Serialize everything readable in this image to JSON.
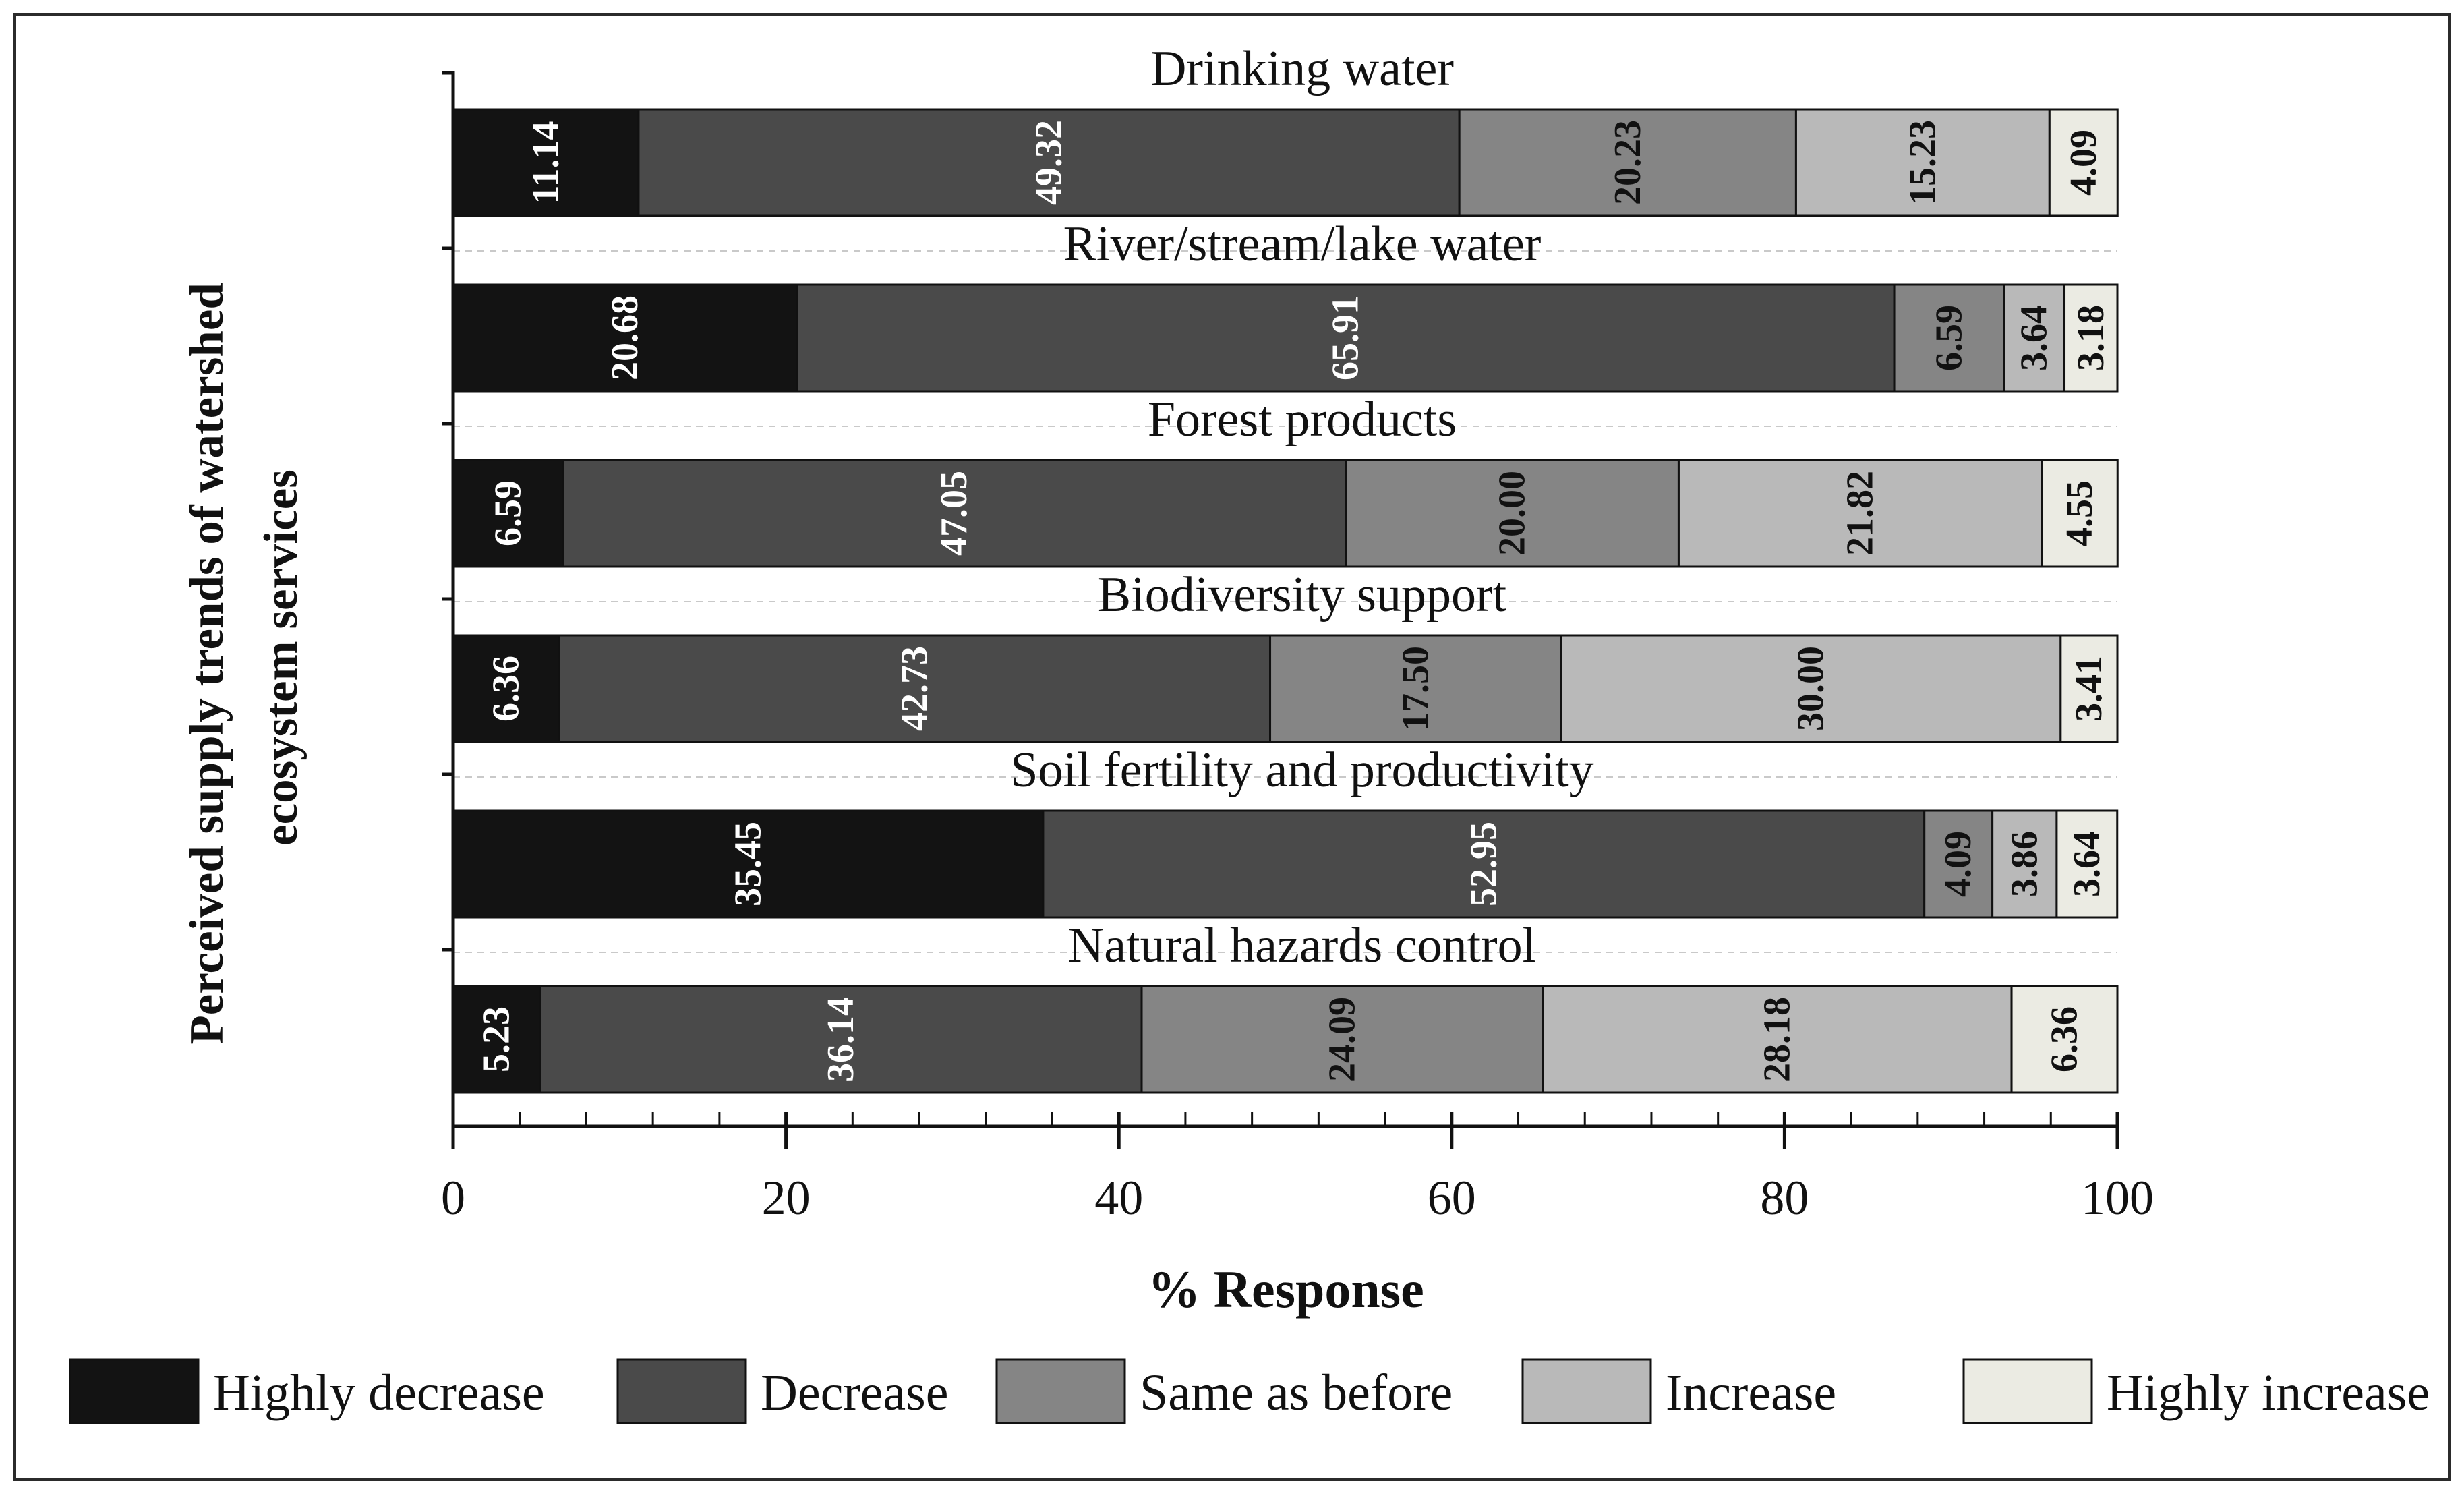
{
  "chart_data": {
    "type": "bar",
    "orientation": "horizontal",
    "stacked": true,
    "categories": [
      "Drinking water",
      "River/stream/lake water",
      "Forest products",
      "Biodiversity support",
      "Soil fertility and productivity",
      "Natural hazards control"
    ],
    "series": [
      {
        "name": "Highly decrease",
        "color": "#131313",
        "label_color": "#ffffff",
        "values": [
          11.14,
          20.68,
          6.59,
          6.36,
          35.45,
          5.23
        ]
      },
      {
        "name": "Decrease",
        "color": "#4a4a4a",
        "label_color": "#ffffff",
        "values": [
          49.32,
          65.91,
          47.05,
          42.73,
          52.95,
          36.14
        ]
      },
      {
        "name": "Same as before",
        "color": "#858585",
        "label_color": "#111111",
        "values": [
          20.23,
          6.59,
          20.0,
          17.5,
          4.09,
          24.09
        ]
      },
      {
        "name": "Increase",
        "color": "#b9b9b9",
        "label_color": "#111111",
        "values": [
          15.23,
          3.64,
          21.82,
          30.0,
          3.86,
          28.18
        ]
      },
      {
        "name": "Highly increase",
        "color": "#ebebe3",
        "label_color": "#111111",
        "values": [
          4.09,
          3.18,
          4.55,
          3.41,
          3.64,
          6.36
        ]
      }
    ],
    "data_labels": [
      [
        "11.14",
        "49.32",
        "20.23",
        "15.23",
        "4.09"
      ],
      [
        "20.68",
        "65.91",
        "6.59",
        "3.64",
        "3.18"
      ],
      [
        "6.59",
        "47.05",
        "20.00",
        "21.82",
        "4.55"
      ],
      [
        "6.36",
        "42.73",
        "17.50",
        "30.00",
        "3.41"
      ],
      [
        "35.45",
        "52.95",
        "4.09",
        "3.86",
        "3.64"
      ],
      [
        "5.23",
        "36.14",
        "24.09",
        "28.18",
        "6.36"
      ]
    ],
    "xlabel": "% Response",
    "ylabel_lines": [
      "Perceived supply trends of watershed",
      "ecosystem services"
    ],
    "xlim": [
      0,
      100
    ],
    "xticks": [
      0,
      20,
      40,
      60,
      80,
      100
    ],
    "xtick_labels": [
      "0",
      "20",
      "40",
      "60",
      "80",
      "100"
    ],
    "grid": "dashed horizontal separators",
    "legend_position": "bottom"
  }
}
